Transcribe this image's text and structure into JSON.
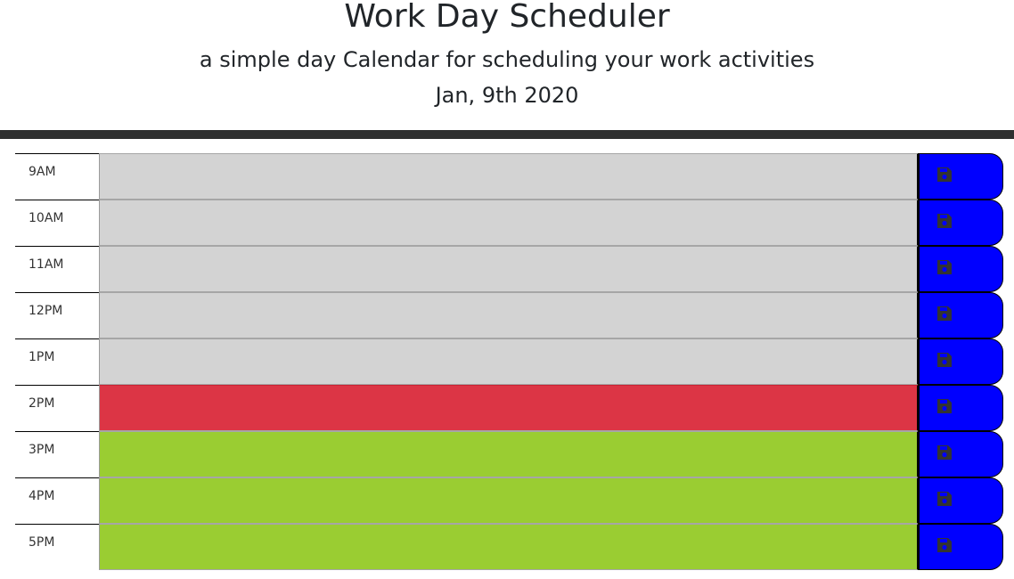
{
  "header": {
    "title": "Work Day Scheduler",
    "subtitle": "a simple day Calendar for scheduling your work activities",
    "current_day": "Jan, 9th 2020"
  },
  "colors": {
    "past": "#d3d3d3",
    "present": "#dc3545",
    "future": "#9acd32",
    "save_button": "#0000ff",
    "save_icon": "#333333",
    "divider": "#2f3030"
  },
  "timeblocks": [
    {
      "hour": "9AM",
      "status": "past",
      "text": ""
    },
    {
      "hour": "10AM",
      "status": "past",
      "text": ""
    },
    {
      "hour": "11AM",
      "status": "past",
      "text": ""
    },
    {
      "hour": "12PM",
      "status": "past",
      "text": ""
    },
    {
      "hour": "1PM",
      "status": "past",
      "text": ""
    },
    {
      "hour": "2PM",
      "status": "present",
      "text": ""
    },
    {
      "hour": "3PM",
      "status": "future",
      "text": ""
    },
    {
      "hour": "4PM",
      "status": "future",
      "text": ""
    },
    {
      "hour": "5PM",
      "status": "future",
      "text": ""
    }
  ],
  "save_icon_name": "save-icon"
}
